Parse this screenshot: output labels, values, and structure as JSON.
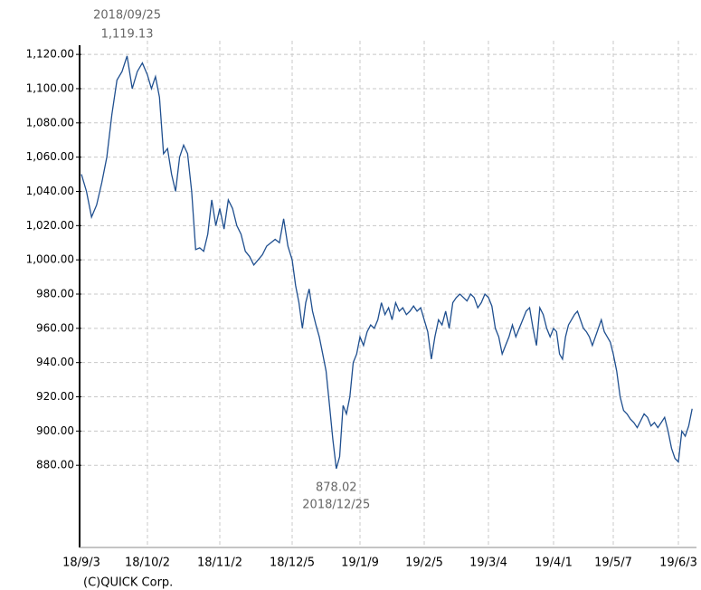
{
  "chart_data": {
    "type": "line",
    "color": "#1f4f8f",
    "ylim": [
      832,
      1128
    ],
    "yticks": [
      {
        "value": 880,
        "label": "880.00"
      },
      {
        "value": 900,
        "label": "900.00"
      },
      {
        "value": 920,
        "label": "920.00"
      },
      {
        "value": 940,
        "label": "940.00"
      },
      {
        "value": 960,
        "label": "960.00"
      },
      {
        "value": 980,
        "label": "980.00"
      },
      {
        "value": 1000,
        "label": "1,000.00"
      },
      {
        "value": 1020,
        "label": "1,020.00"
      },
      {
        "value": 1040,
        "label": "1,040.00"
      },
      {
        "value": 1060,
        "label": "1,060.00"
      },
      {
        "value": 1080,
        "label": "1,080.00"
      },
      {
        "value": 1100,
        "label": "1,100.00"
      },
      {
        "value": 1120,
        "label": "1,120.00"
      }
    ],
    "xticks": [
      "18/9/3",
      "18/10/2",
      "18/11/2",
      "18/12/5",
      "19/1/9",
      "19/2/5",
      "19/3/4",
      "19/4/1",
      "19/5/7",
      "19/6/3"
    ],
    "grid": true,
    "x": [
      "18/9/3",
      "18/9/5",
      "18/9/7",
      "18/9/11",
      "18/9/13",
      "18/9/14",
      "18/9/18",
      "18/9/20",
      "18/9/21",
      "18/9/25",
      "18/9/27",
      "18/9/28",
      "18/10/1",
      "18/10/2",
      "18/10/4",
      "18/10/5",
      "18/10/9",
      "18/10/11",
      "18/10/12",
      "18/10/15",
      "18/10/16",
      "18/10/18",
      "18/10/19",
      "18/10/22",
      "18/10/24",
      "18/10/25",
      "18/10/26",
      "18/10/29",
      "18/10/30",
      "18/10/31",
      "18/11/1",
      "18/11/2",
      "18/11/5",
      "18/11/7",
      "18/11/8",
      "18/11/9",
      "18/11/12",
      "18/11/14",
      "18/11/16",
      "18/11/20",
      "18/11/21",
      "18/11/22",
      "18/11/26",
      "18/11/27",
      "18/11/29",
      "18/11/30",
      "18/12/3",
      "18/12/4",
      "18/12/5",
      "18/12/6",
      "18/12/7",
      "18/12/10",
      "18/12/11",
      "18/12/12",
      "18/12/13",
      "18/12/14",
      "18/12/17",
      "18/12/18",
      "18/12/19",
      "18/12/20",
      "18/12/21",
      "18/12/25",
      "18/12/26",
      "18/12/27",
      "18/12/28",
      "19/1/4",
      "19/1/7",
      "19/1/8",
      "19/1/9",
      "19/1/10",
      "19/1/11",
      "19/1/15",
      "19/1/16",
      "19/1/17",
      "19/1/18",
      "19/1/21",
      "19/1/22",
      "19/1/23",
      "19/1/24",
      "19/1/25",
      "19/1/28",
      "19/1/29",
      "19/1/30",
      "19/1/31",
      "19/2/1",
      "19/2/4",
      "19/2/5",
      "19/2/6",
      "19/2/7",
      "19/2/8",
      "19/2/12",
      "19/2/13",
      "19/2/14",
      "19/2/15",
      "19/2/18",
      "19/2/19",
      "19/2/20",
      "19/2/21",
      "19/2/22",
      "19/2/25",
      "19/2/26",
      "19/2/27",
      "19/2/28",
      "19/3/1",
      "19/3/4",
      "19/3/5",
      "19/3/6",
      "19/3/7",
      "19/3/8",
      "19/3/11",
      "19/3/12",
      "19/3/13",
      "19/3/14",
      "19/3/15",
      "19/3/18",
      "19/3/19",
      "19/3/20",
      "19/3/22",
      "19/3/25",
      "19/3/26",
      "19/3/27",
      "19/3/28",
      "19/3/29",
      "19/4/1",
      "19/4/2",
      "19/4/3",
      "19/4/4",
      "19/4/5",
      "19/4/8",
      "19/4/9",
      "19/4/10",
      "19/4/11",
      "19/4/12",
      "19/4/15",
      "19/4/16",
      "19/4/17",
      "19/4/18",
      "19/4/19",
      "19/4/22",
      "19/4/23",
      "19/4/24",
      "19/4/25",
      "19/4/26",
      "19/5/7",
      "19/5/8",
      "19/5/9",
      "19/5/10",
      "19/5/13",
      "19/5/14",
      "19/5/15",
      "19/5/16",
      "19/5/17",
      "19/5/20",
      "19/5/21",
      "19/5/22",
      "19/5/23",
      "19/5/24",
      "19/5/27",
      "19/5/28",
      "19/5/29",
      "19/5/30",
      "19/5/31",
      "19/6/3",
      "19/6/4",
      "19/6/5",
      "19/6/6",
      "19/6/7"
    ],
    "values": [
      1050,
      1040,
      1025,
      1032,
      1045,
      1060,
      1085,
      1105,
      1110,
      1119.13,
      1100,
      1110,
      1115,
      1108,
      1100,
      1107,
      1095,
      1062,
      1065,
      1050,
      1040,
      1060,
      1067,
      1062,
      1040,
      1006,
      1007,
      1005,
      1015,
      1035,
      1020,
      1030,
      1018,
      1035,
      1030,
      1020,
      1015,
      1005,
      1002,
      997,
      1000,
      1003,
      1008,
      1010,
      1012,
      1010,
      1024,
      1008,
      1000,
      985,
      975,
      960,
      975,
      983,
      970,
      962,
      955,
      945,
      935,
      915,
      895,
      878.02,
      885,
      915,
      910,
      920,
      940,
      945,
      955,
      950,
      958,
      962,
      960,
      965,
      975,
      968,
      972,
      965,
      975,
      970,
      972,
      968,
      970,
      973,
      970,
      972,
      965,
      958,
      942,
      955,
      965,
      962,
      970,
      960,
      975,
      978,
      980,
      978,
      976,
      980,
      978,
      972,
      975,
      980,
      978,
      973,
      960,
      955,
      945,
      950,
      955,
      962,
      955,
      960,
      965,
      970,
      972,
      960,
      950,
      972,
      968,
      960,
      955,
      960,
      958,
      945,
      942,
      955,
      962,
      965,
      968,
      970,
      965,
      960,
      958,
      955,
      950,
      955,
      960,
      965,
      958,
      955,
      952,
      945,
      935,
      920,
      912,
      910,
      907,
      905,
      902,
      906,
      910,
      908,
      903,
      905,
      902,
      905,
      908,
      900,
      890,
      884,
      882,
      900,
      897,
      903,
      913
    ],
    "annotations": [
      {
        "date": "2018/09/25",
        "value": 1119.13,
        "label": "1,119.13"
      },
      {
        "date": "2018/12/25",
        "value": 878.02,
        "label": "878.02"
      }
    ],
    "credit": "(C)QUICK Corp."
  }
}
